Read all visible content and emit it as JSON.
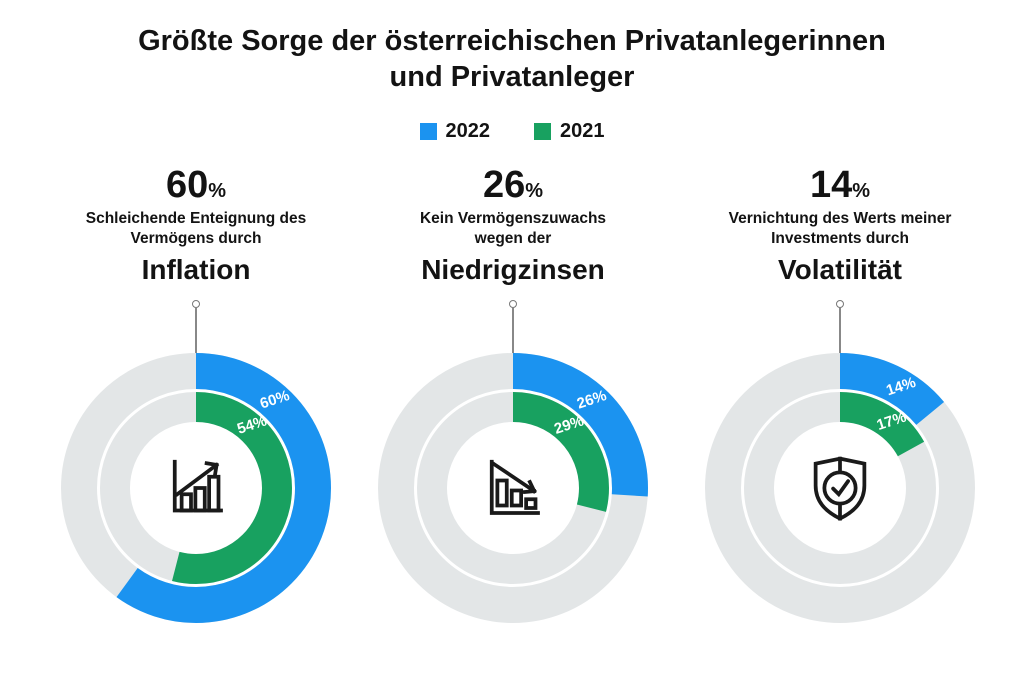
{
  "title": {
    "line1": "Größte Sorge der österreichischen Privatanlegerinnen",
    "line2": "und Privatanleger"
  },
  "legend": {
    "items": [
      {
        "label": "2022",
        "color": "#1b93f0"
      },
      {
        "label": "2021",
        "color": "#18a160"
      }
    ]
  },
  "colors": {
    "blue_2022": "#1b93f0",
    "green_2021": "#18a160",
    "track_gray": "#e3e6e7",
    "ring_label_white": "#ffffff",
    "text_black": "#131313",
    "connector_gray": "#888888"
  },
  "chart_data": {
    "type": "donut",
    "series": [
      "2022",
      "2021"
    ],
    "series_colors": [
      "#1b93f0",
      "#18a160"
    ],
    "track_color": "#e3e6e7",
    "unit": "%",
    "legend_position": "top-center",
    "charts": [
      {
        "topic": "Inflation",
        "headline": "60",
        "unit": "%",
        "desc1": "Schleichende Enteignung des",
        "desc2": "Vermögens durch",
        "values": [
          60,
          54
        ],
        "ring_labels": [
          "60%",
          "54%"
        ],
        "icon": "growth-chart-icon"
      },
      {
        "topic": "Niedrigzinsen",
        "headline": "26",
        "unit": "%",
        "desc1": "Kein Vermögenszuwachs",
        "desc2": "wegen der",
        "values": [
          26,
          29
        ],
        "ring_labels": [
          "26%",
          "29%"
        ],
        "icon": "declining-chart-icon"
      },
      {
        "topic": "Volatilität",
        "headline": "14",
        "unit": "%",
        "desc1": "Vernichtung des Werts meiner",
        "desc2": "Investments durch",
        "values": [
          14,
          17
        ],
        "ring_labels": [
          "14%",
          "17%"
        ],
        "icon": "shield-check-icon"
      }
    ]
  }
}
